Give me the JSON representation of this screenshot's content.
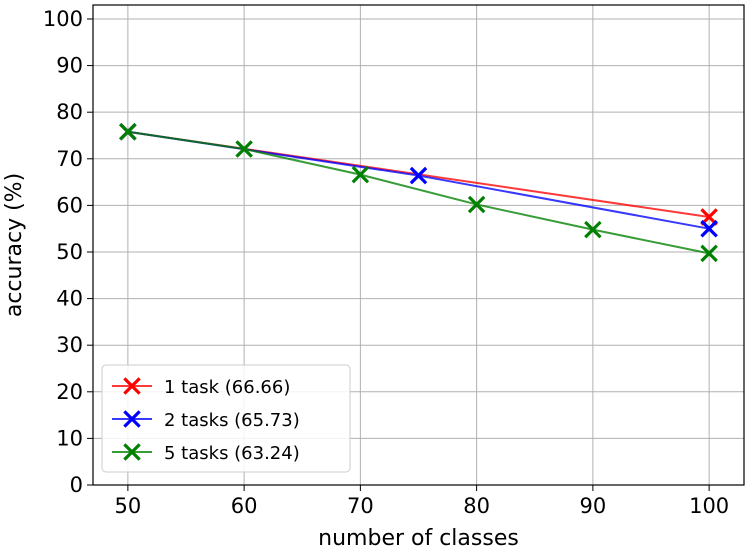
{
  "chart_data": {
    "type": "line",
    "title": "",
    "xlabel": "number of classes",
    "ylabel": "accuracy (%)",
    "xlim": [
      47,
      103
    ],
    "ylim": [
      0,
      103
    ],
    "xticks": [
      50,
      60,
      70,
      80,
      90,
      100
    ],
    "yticks": [
      0,
      10,
      20,
      30,
      40,
      50,
      60,
      70,
      80,
      90,
      100
    ],
    "grid": true,
    "legend_position": "lower-left",
    "series": [
      {
        "name": "1 task (66.66)",
        "color": "#ff0000",
        "marker": "x-filled",
        "x": [
          50,
          100
        ],
        "y": [
          75.8,
          57.5
        ]
      },
      {
        "name": "2 tasks (65.73)",
        "color": "#0000ff",
        "marker": "x-filled",
        "x": [
          50,
          75,
          100
        ],
        "y": [
          75.8,
          66.4,
          55.0
        ]
      },
      {
        "name": "5 tasks (63.24)",
        "color": "#008000",
        "marker": "x-filled",
        "x": [
          50,
          60,
          70,
          80,
          90,
          100
        ],
        "y": [
          75.8,
          72.1,
          66.6,
          60.2,
          54.8,
          49.7
        ]
      }
    ]
  }
}
